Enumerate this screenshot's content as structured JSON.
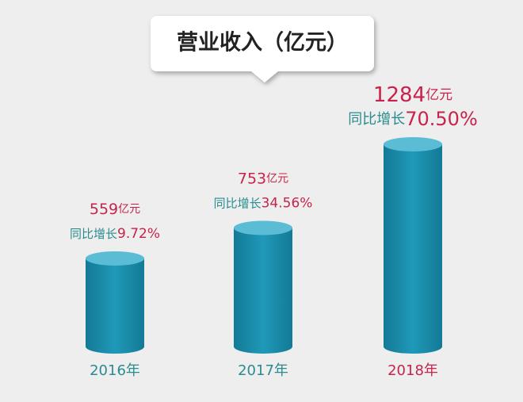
{
  "chart_data": {
    "type": "cylinder-bar",
    "title": "营业收入（亿元）",
    "categories": [
      "2016年",
      "2017年",
      "2018年"
    ],
    "values": [
      559,
      753,
      1284
    ],
    "value_labels": [
      "559亿元",
      "753亿元",
      "1284亿元"
    ],
    "growth": {
      "values": [
        9.72,
        34.56,
        70.5
      ],
      "value_labels": [
        "同比增长9.72%",
        "同比增长34.56%",
        "同比增长70.50%"
      ]
    },
    "color": "#1b8fae",
    "top_color": "#5bbcd6",
    "label_color": "#c8234a",
    "text_color": "#2a8c8f"
  }
}
